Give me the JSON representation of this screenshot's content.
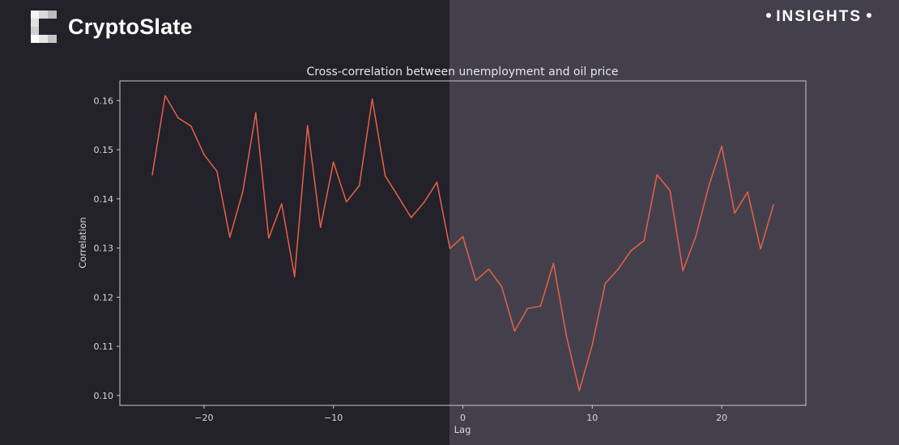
{
  "header": {
    "brand_name": "CryptoSlate",
    "logo_icon": "cryptoslate-logo-icon",
    "badge_label": "INSIGHTS"
  },
  "colors": {
    "background_left": "#232129",
    "background_right": "#43404c",
    "line": "#e8604a",
    "axes": "#c8c6d0",
    "text": "#d9d9de"
  },
  "chart_data": {
    "type": "line",
    "title": "Cross-correlation between unemployment and oil price",
    "xlabel": "Lag",
    "ylabel": "Correlation",
    "xlim": [
      -26.5,
      26.5
    ],
    "ylim": [
      0.098,
      0.164
    ],
    "x_ticks": [
      -20,
      -10,
      0,
      10,
      20
    ],
    "x_tick_labels": [
      "−20",
      "−10",
      "0",
      "10",
      "20"
    ],
    "y_ticks": [
      0.1,
      0.11,
      0.12,
      0.13,
      0.14,
      0.15,
      0.16
    ],
    "y_tick_labels": [
      "0.10",
      "0.11",
      "0.12",
      "0.13",
      "0.14",
      "0.15",
      "0.16"
    ],
    "grid": false,
    "series": [
      {
        "x": [
          -24,
          -23,
          -22,
          -21,
          -20,
          -19,
          -18,
          -17,
          -16,
          -15,
          -14,
          -13,
          -12,
          -11,
          -10,
          -9,
          -8,
          -7,
          -6,
          -5,
          -4,
          -3,
          -2,
          -1,
          0,
          1,
          2,
          3,
          4,
          5,
          6,
          7,
          8,
          9,
          10,
          11,
          12,
          13,
          14,
          15,
          16,
          17,
          18,
          19,
          20,
          21,
          22,
          23,
          24
        ],
        "values": [
          0.1449,
          0.161,
          0.1565,
          0.1548,
          0.149,
          0.1456,
          0.1322,
          0.1415,
          0.1575,
          0.132,
          0.139,
          0.1242,
          0.1549,
          0.1342,
          0.1475,
          0.1394,
          0.1427,
          0.1603,
          0.1447,
          0.1405,
          0.1362,
          0.1393,
          0.1434,
          0.1299,
          0.1323,
          0.1234,
          0.1257,
          0.1222,
          0.1131,
          0.1177,
          0.1182,
          0.1269,
          0.1122,
          0.101,
          0.1103,
          0.1228,
          0.1257,
          0.1295,
          0.1315,
          0.1449,
          0.1417,
          0.1254,
          0.1324,
          0.1426,
          0.1507,
          0.1371,
          0.1414,
          0.1298,
          0.1388
        ]
      }
    ]
  }
}
